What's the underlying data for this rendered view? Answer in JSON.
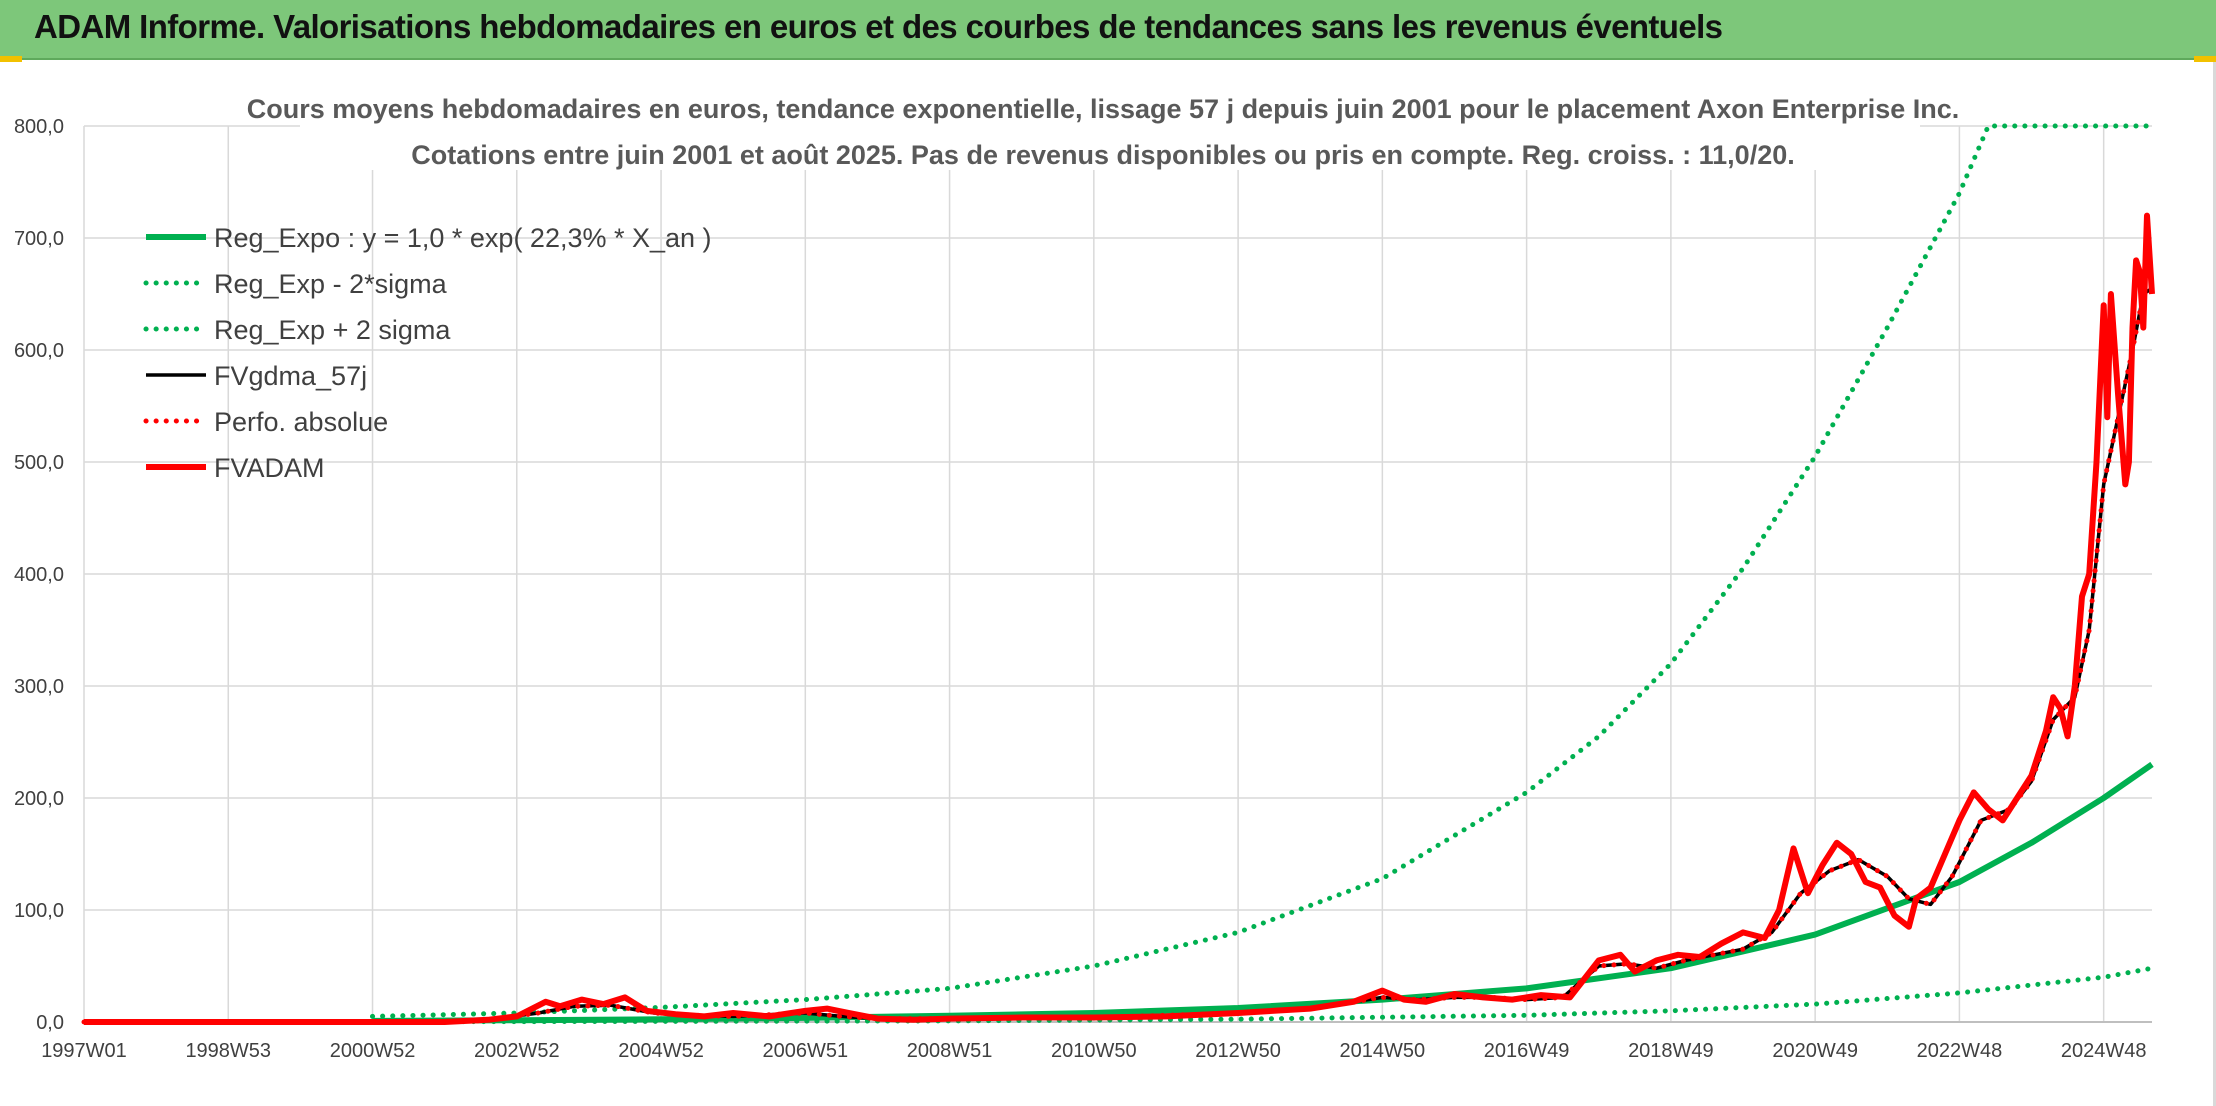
{
  "header": {
    "title": "ADAM Informe. Valorisations hebdomadaires en euros et des courbes de tendances sans les revenus éventuels"
  },
  "colors": {
    "banner": "#7dc77a",
    "trend": "#00b050",
    "smooth": "#000000",
    "perf": "#ff0000",
    "fvadam": "#ff0000"
  },
  "chart_data": {
    "type": "line",
    "title": "Cours moyens hebdomadaires en euros, tendance exponentielle, lissage 57 j depuis juin 2001 pour le placement Axon Enterprise Inc.",
    "subtitle": "Cotations entre juin 2001 et août 2025. Pas de revenus disponibles ou pris en compte. Reg. croiss. : 11,0/20.",
    "xlabel": "",
    "ylabel": "",
    "x_range": [
      1997.0,
      2025.67
    ],
    "ylim": [
      0,
      800
    ],
    "grid": true,
    "legend_position": "top-left",
    "y_ticks": [
      "0,0",
      "100,0",
      "200,0",
      "300,0",
      "400,0",
      "500,0",
      "600,0",
      "700,0",
      "800,0"
    ],
    "x_ticks": [
      {
        "label": "1997W01",
        "x": 1997.0
      },
      {
        "label": "1998W53",
        "x": 1999.0
      },
      {
        "label": "2000W52",
        "x": 2001.0
      },
      {
        "label": "2002W52",
        "x": 2003.0
      },
      {
        "label": "2004W52",
        "x": 2005.0
      },
      {
        "label": "2006W51",
        "x": 2007.0
      },
      {
        "label": "2008W51",
        "x": 2009.0
      },
      {
        "label": "2010W50",
        "x": 2011.0
      },
      {
        "label": "2012W50",
        "x": 2013.0
      },
      {
        "label": "2014W50",
        "x": 2015.0
      },
      {
        "label": "2016W49",
        "x": 2017.0
      },
      {
        "label": "2018W49",
        "x": 2019.0
      },
      {
        "label": "2020W49",
        "x": 2021.0
      },
      {
        "label": "2022W48",
        "x": 2023.0
      },
      {
        "label": "2024W48",
        "x": 2025.0
      }
    ],
    "series": [
      {
        "name": "Reg_Expo : y = 1,0 * exp( 22,3% *  X_an )",
        "style": "solid-thick",
        "color": "#00b050",
        "x": [
          2001.0,
          2003.0,
          2005.0,
          2007.0,
          2009.0,
          2011.0,
          2013.0,
          2015.0,
          2017.0,
          2019.0,
          2021.0,
          2023.0,
          2024.0,
          2025.0,
          2025.67
        ],
        "y": [
          1.0,
          1.6,
          2.4,
          3.7,
          5.5,
          8.0,
          12.5,
          20.0,
          30.0,
          48.0,
          78.0,
          125.0,
          160.0,
          200.0,
          230.0
        ]
      },
      {
        "name": "Reg_Exp - 2*sigma",
        "style": "dotted",
        "color": "#00b050",
        "x": [
          2001.0,
          2005.0,
          2009.0,
          2013.0,
          2017.0,
          2019.0,
          2021.0,
          2023.0,
          2025.0,
          2025.67
        ],
        "y": [
          0.2,
          0.5,
          1.0,
          2.5,
          6.0,
          10.0,
          16.0,
          26.0,
          40.0,
          48.0
        ]
      },
      {
        "name": "Reg_Exp + 2 sigma",
        "style": "dotted",
        "color": "#00b050",
        "x": [
          2001.0,
          2003.0,
          2005.0,
          2007.0,
          2009.0,
          2011.0,
          2013.0,
          2015.0,
          2017.0,
          2018.0,
          2019.0,
          2020.0,
          2021.0,
          2022.0,
          2023.0,
          2023.4,
          2023.6,
          2025.67
        ],
        "y": [
          5,
          8,
          13,
          20,
          30,
          50,
          80,
          128,
          205,
          255,
          320,
          405,
          505,
          620,
          740,
          800,
          800,
          800
        ]
      },
      {
        "name": "FVgdma_57j",
        "style": "solid",
        "color": "#000000",
        "x": [
          1997.0,
          2001.0,
          2002.5,
          2003.3,
          2003.8,
          2004.3,
          2004.9,
          2005.5,
          2006.0,
          2007.0,
          2007.5,
          2008.0,
          2009.0,
          2010.0,
          2011.0,
          2012.0,
          2013.0,
          2014.0,
          2015.0,
          2015.5,
          2016.0,
          2016.5,
          2017.0,
          2017.5,
          2018.0,
          2018.4,
          2018.8,
          2019.2,
          2019.6,
          2020.0,
          2020.4,
          2020.8,
          2021.2,
          2021.6,
          2022.0,
          2022.3,
          2022.6,
          2022.9,
          2023.3,
          2023.7,
          2024.0,
          2024.3,
          2024.6,
          2024.8,
          2025.0,
          2025.2,
          2025.4,
          2025.55,
          2025.67
        ],
        "y": [
          0,
          0,
          1,
          8,
          14,
          15,
          8,
          6,
          5,
          8,
          5,
          3,
          3,
          4,
          4,
          6,
          8,
          12,
          22,
          20,
          22,
          22,
          20,
          22,
          50,
          52,
          48,
          55,
          60,
          65,
          80,
          115,
          135,
          145,
          130,
          110,
          105,
          130,
          180,
          190,
          215,
          270,
          290,
          350,
          480,
          540,
          600,
          650,
          655
        ]
      },
      {
        "name": "Perfo. absolue",
        "style": "dotted",
        "color": "#ff0000",
        "x": [
          1997.0,
          2001.0,
          2002.5,
          2003.3,
          2003.8,
          2004.3,
          2004.9,
          2005.5,
          2006.0,
          2007.0,
          2007.5,
          2008.0,
          2009.0,
          2010.0,
          2011.0,
          2012.0,
          2013.0,
          2014.0,
          2015.0,
          2015.5,
          2016.0,
          2016.5,
          2017.0,
          2017.5,
          2018.0,
          2018.4,
          2018.8,
          2019.2,
          2019.6,
          2020.0,
          2020.4,
          2020.8,
          2021.2,
          2021.6,
          2022.0,
          2022.3,
          2022.6,
          2022.9,
          2023.3,
          2023.7,
          2024.0,
          2024.3,
          2024.6,
          2024.8,
          2025.0,
          2025.2,
          2025.4,
          2025.55,
          2025.67
        ],
        "y": [
          0,
          0,
          1,
          8,
          14,
          15,
          8,
          6,
          5,
          8,
          5,
          3,
          3,
          4,
          4,
          6,
          8,
          12,
          22,
          20,
          22,
          22,
          20,
          22,
          50,
          52,
          48,
          55,
          60,
          65,
          80,
          115,
          135,
          145,
          130,
          110,
          105,
          130,
          180,
          190,
          215,
          270,
          290,
          350,
          480,
          540,
          600,
          650,
          655
        ]
      },
      {
        "name": "FVADAM",
        "style": "solid-thick",
        "color": "#ff0000",
        "x": [
          1997.0,
          2001.0,
          2002.0,
          2002.6,
          2003.0,
          2003.4,
          2003.6,
          2003.9,
          2004.2,
          2004.5,
          2004.8,
          2005.2,
          2005.6,
          2006.0,
          2006.5,
          2007.0,
          2007.3,
          2007.6,
          2008.0,
          2008.5,
          2009.0,
          2010.0,
          2011.0,
          2012.0,
          2013.0,
          2014.0,
          2014.6,
          2015.0,
          2015.3,
          2015.6,
          2016.0,
          2016.4,
          2016.8,
          2017.2,
          2017.6,
          2018.0,
          2018.3,
          2018.5,
          2018.8,
          2019.1,
          2019.4,
          2019.7,
          2020.0,
          2020.3,
          2020.5,
          2020.7,
          2020.9,
          2021.1,
          2021.3,
          2021.5,
          2021.7,
          2021.9,
          2022.1,
          2022.3,
          2022.4,
          2022.6,
          2022.8,
          2023.0,
          2023.2,
          2023.4,
          2023.6,
          2023.8,
          2024.0,
          2024.2,
          2024.3,
          2024.4,
          2024.5,
          2024.6,
          2024.7,
          2024.8,
          2024.9,
          2025.0,
          2025.05,
          2025.1,
          2025.2,
          2025.3,
          2025.35,
          2025.4,
          2025.45,
          2025.5,
          2025.55,
          2025.6,
          2025.67
        ],
        "y": [
          0,
          0,
          0,
          2,
          5,
          18,
          14,
          20,
          16,
          22,
          10,
          7,
          5,
          8,
          5,
          10,
          12,
          8,
          3,
          2,
          3,
          4,
          4,
          5,
          8,
          12,
          18,
          28,
          20,
          18,
          25,
          22,
          20,
          24,
          22,
          55,
          60,
          45,
          55,
          60,
          58,
          70,
          80,
          75,
          100,
          155,
          115,
          140,
          160,
          150,
          125,
          120,
          95,
          85,
          110,
          120,
          150,
          180,
          205,
          190,
          180,
          200,
          220,
          260,
          290,
          280,
          255,
          300,
          380,
          400,
          500,
          640,
          540,
          650,
          560,
          480,
          500,
          620,
          680,
          670,
          620,
          720,
          650
        ]
      }
    ]
  }
}
